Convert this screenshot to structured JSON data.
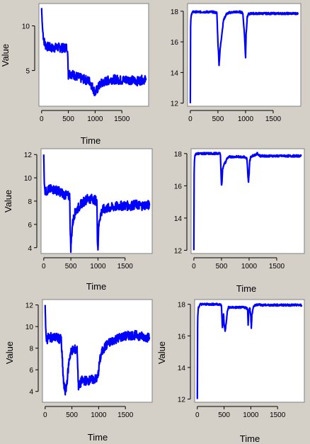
{
  "chart_data": [
    {
      "type": "line",
      "xlabel": "Time",
      "ylabel": "Value",
      "xlim": [
        -50,
        2000
      ],
      "ylim": [
        1,
        12.5
      ],
      "xticks": [
        0,
        500,
        1000,
        1500
      ],
      "yticks": [
        5,
        10
      ],
      "grid": false,
      "color": "#0000ff",
      "series": [
        {
          "x": [
            0,
            10,
            20,
            40,
            60,
            80,
            100,
            150,
            200,
            300,
            400,
            480,
            495,
            500,
            510,
            520,
            600,
            700,
            800,
            900,
            1000,
            1100,
            1200,
            1300,
            1400,
            1500,
            1600,
            1700,
            1800,
            1900,
            1950
          ],
          "y": [
            12,
            10.5,
            9.5,
            8.5,
            8,
            7.8,
            7.7,
            7.6,
            7.5,
            7.6,
            7.5,
            7.6,
            5.5,
            4.5,
            4.8,
            4.7,
            4.5,
            4.2,
            4,
            3.8,
            2.5,
            3.5,
            3.8,
            4,
            4,
            3.9,
            4,
            3.9,
            3.8,
            4,
            3.9
          ]
        }
      ]
    },
    {
      "type": "line",
      "xlabel": "",
      "ylabel": "",
      "xlim": [
        -50,
        2000
      ],
      "ylim": [
        11.8,
        18.5
      ],
      "xticks": [
        0,
        500,
        1000,
        1500
      ],
      "yticks": [
        12,
        14,
        16,
        18
      ],
      "grid": false,
      "color": "#0000ff",
      "series": [
        {
          "x": [
            0,
            5,
            10,
            20,
            30,
            50,
            100,
            200,
            300,
            400,
            480,
            500,
            520,
            540,
            570,
            600,
            650,
            700,
            800,
            900,
            950,
            980,
            1000,
            1010,
            1030,
            1050,
            1100,
            1200,
            1300,
            1500,
            1700,
            1900,
            1950
          ],
          "y": [
            12,
            17,
            17.5,
            17.8,
            17.9,
            17.95,
            17.95,
            17.95,
            17.95,
            17.95,
            17.9,
            16,
            14.5,
            15.5,
            16.5,
            17.4,
            17.8,
            17.9,
            17.95,
            17.95,
            17.9,
            16.5,
            15,
            16.5,
            17.6,
            17.8,
            17.85,
            17.85,
            17.85,
            17.85,
            17.85,
            17.85,
            17.85
          ]
        }
      ]
    },
    {
      "type": "line",
      "xlabel": "Time",
      "ylabel": "Value",
      "xlim": [
        -50,
        2000
      ],
      "ylim": [
        3.5,
        12.5
      ],
      "xticks": [
        0,
        500,
        1000,
        1500
      ],
      "yticks": [
        4,
        6,
        8,
        10,
        12
      ],
      "grid": false,
      "color": "#0000ff",
      "series": [
        {
          "x": [
            0,
            10,
            20,
            40,
            60,
            100,
            200,
            300,
            400,
            480,
            490,
            500,
            510,
            530,
            560,
            600,
            700,
            800,
            900,
            980,
            990,
            1000,
            1010,
            1030,
            1060,
            1100,
            1200,
            1300,
            1400,
            1500,
            1600,
            1700,
            1800,
            1900,
            1950
          ],
          "y": [
            12,
            9.5,
            9,
            8.8,
            8.9,
            9,
            9,
            8.8,
            8.5,
            8.4,
            5,
            4,
            4.8,
            6,
            6.8,
            7.2,
            7.8,
            8.2,
            8.2,
            8,
            5,
            3.8,
            5.5,
            6.5,
            7,
            7.3,
            7.4,
            7.5,
            7.6,
            7.6,
            7.6,
            7.7,
            7.6,
            7.7,
            7.6
          ]
        }
      ]
    },
    {
      "type": "line",
      "xlabel": "Time",
      "ylabel": "",
      "xlim": [
        -50,
        2000
      ],
      "ylim": [
        11.8,
        18.3
      ],
      "xticks": [
        0,
        500,
        1000,
        1500
      ],
      "yticks": [
        12,
        14,
        16,
        18
      ],
      "grid": false,
      "color": "#0000ff",
      "series": [
        {
          "x": [
            0,
            5,
            10,
            20,
            40,
            60,
            100,
            200,
            300,
            400,
            480,
            500,
            510,
            520,
            540,
            560,
            580,
            600,
            650,
            700,
            800,
            900,
            960,
            980,
            990,
            1000,
            1010,
            1030,
            1050,
            1100,
            1150,
            1200,
            1300,
            1500,
            1700,
            1900,
            1950
          ],
          "y": [
            12,
            16.8,
            17.5,
            17.9,
            18,
            18,
            18,
            18,
            18,
            18,
            18,
            16,
            16.3,
            17,
            17.3,
            17.4,
            17.5,
            17.7,
            17.8,
            17.8,
            17.8,
            17.8,
            17.7,
            16.5,
            16.2,
            16.8,
            17.5,
            17.8,
            17.85,
            17.9,
            18,
            17.85,
            17.85,
            17.85,
            17.85,
            17.85,
            17.85
          ]
        }
      ]
    },
    {
      "type": "line",
      "xlabel": "Time",
      "ylabel": "Value",
      "xlim": [
        -50,
        2000
      ],
      "ylim": [
        3,
        12.5
      ],
      "xticks": [
        0,
        500,
        1000,
        1500
      ],
      "yticks": [
        4,
        6,
        8,
        10,
        12
      ],
      "grid": false,
      "color": "#0000ff",
      "series": [
        {
          "x": [
            0,
            10,
            20,
            40,
            60,
            100,
            200,
            300,
            330,
            350,
            380,
            400,
            420,
            450,
            480,
            500,
            550,
            600,
            620,
            650,
            680,
            700,
            750,
            800,
            900,
            980,
            1000,
            1020,
            1050,
            1100,
            1150,
            1200,
            1300,
            1400,
            1500,
            1600,
            1700,
            1800,
            1900,
            1950
          ],
          "y": [
            12,
            10,
            9,
            8.8,
            9,
            9,
            9,
            8.8,
            6,
            4.5,
            4,
            4.5,
            5.5,
            7,
            7.6,
            7.8,
            7.9,
            7.8,
            4.5,
            4.6,
            5,
            5,
            5,
            5,
            5.1,
            5.2,
            6,
            6.8,
            7.5,
            8,
            8.3,
            8.5,
            8.8,
            9,
            9.1,
            9.2,
            9.2,
            9.1,
            9,
            9
          ]
        }
      ]
    },
    {
      "type": "line",
      "xlabel": "Time",
      "ylabel": "Value",
      "xlim": [
        -50,
        2000
      ],
      "ylim": [
        11.8,
        18.3
      ],
      "xticks": [
        0,
        500,
        1000,
        1500
      ],
      "yticks": [
        12,
        14,
        16,
        18
      ],
      "grid": false,
      "color": "#0000ff",
      "series": [
        {
          "x": [
            0,
            5,
            10,
            20,
            40,
            60,
            100,
            200,
            300,
            400,
            450,
            470,
            490,
            500,
            520,
            540,
            560,
            580,
            600,
            650,
            700,
            800,
            900,
            940,
            950,
            960,
            980,
            1000,
            1010,
            1020,
            1040,
            1060,
            1100,
            1150,
            1200,
            1300,
            1500,
            1700,
            1900,
            1950
          ],
          "y": [
            12,
            16.5,
            17.3,
            17.8,
            17.9,
            18,
            18,
            18,
            18,
            18,
            17.95,
            16.5,
            17.4,
            16.8,
            16.3,
            16.8,
            17.5,
            17.8,
            17.8,
            17.8,
            17.8,
            17.8,
            17.8,
            17.7,
            16.7,
            17.5,
            17.8,
            17.2,
            16.5,
            17.3,
            17.7,
            17.9,
            17.95,
            18,
            17.95,
            17.95,
            17.95,
            17.95,
            17.95,
            17.95
          ]
        }
      ]
    }
  ]
}
